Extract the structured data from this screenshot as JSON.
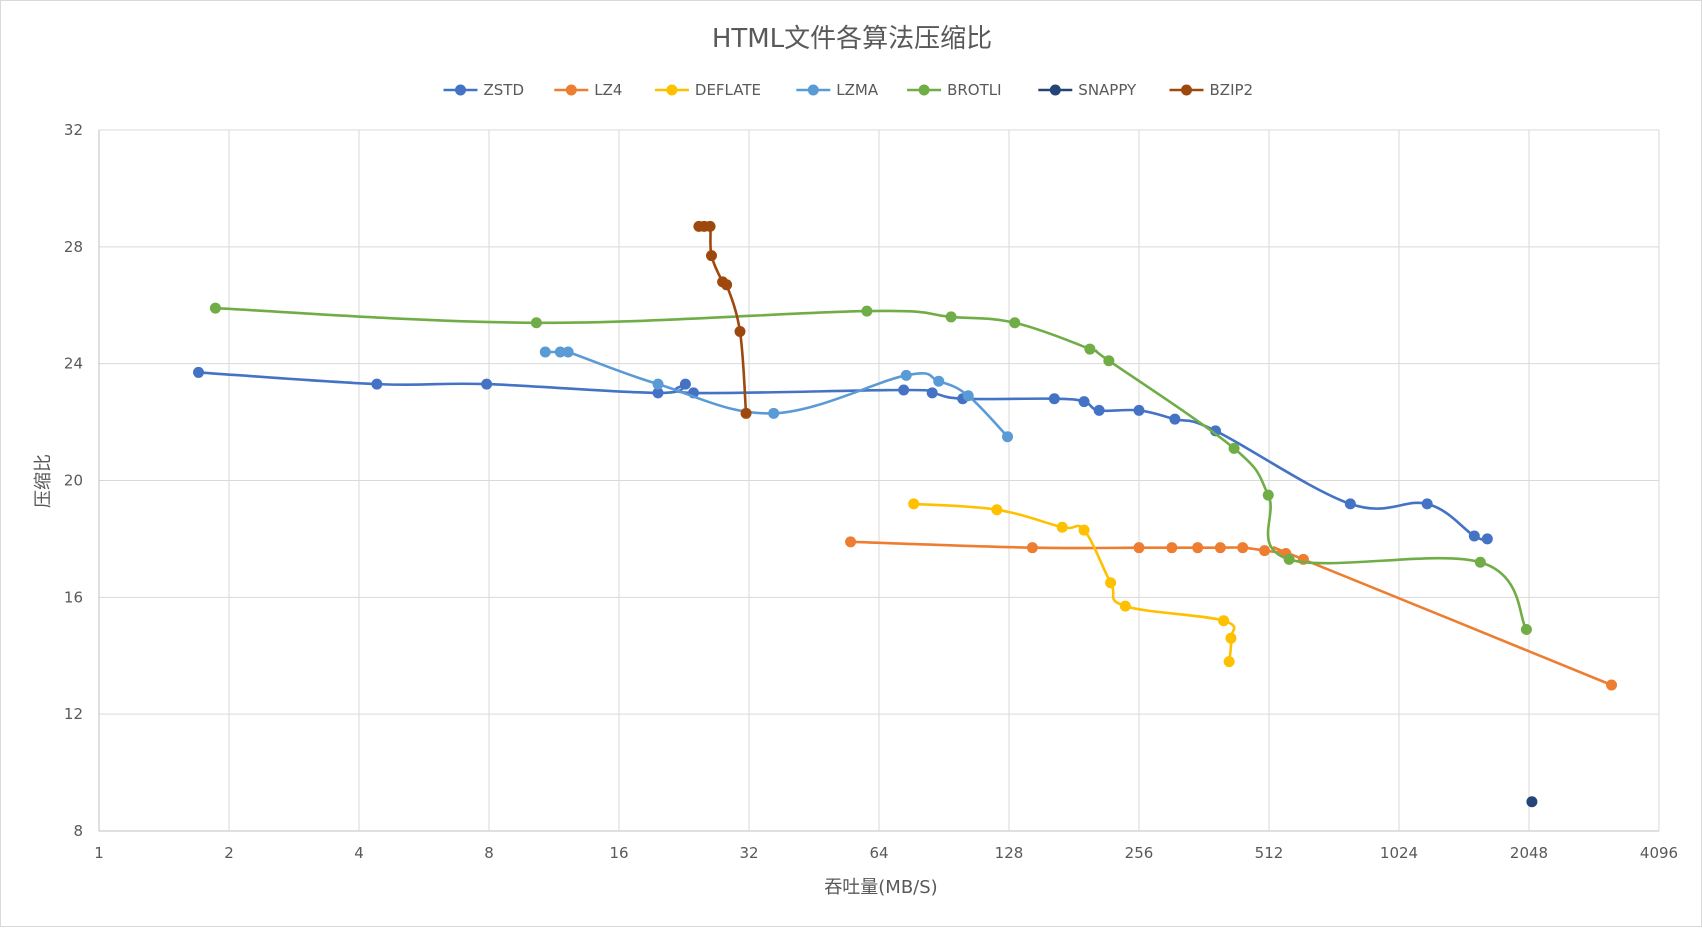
{
  "chart_data": {
    "type": "line",
    "title": "HTML文件各算法压缩比",
    "xlabel": "吞吐量(MB/S)",
    "ylabel": "压缩比",
    "xscale": "log2",
    "xlim": [
      1,
      4096
    ],
    "ylim": [
      8,
      32
    ],
    "x_ticks": [
      1,
      2,
      4,
      8,
      16,
      32,
      64,
      128,
      256,
      512,
      1024,
      2048,
      4096
    ],
    "x_tick_labels": [
      "1",
      "2",
      "4",
      "8",
      "16",
      "32",
      "64",
      "128",
      "256",
      "512",
      "1024",
      "2048",
      "4096"
    ],
    "y_ticks": [
      8,
      12,
      16,
      20,
      24,
      28,
      32
    ],
    "y_tick_labels": [
      "8",
      "12",
      "16",
      "20",
      "24",
      "28",
      "32"
    ],
    "grid": true,
    "legend_position": "top",
    "series": [
      {
        "name": "ZSTD",
        "color": "#4472C4",
        "points": [
          [
            1.7,
            23.7
          ],
          [
            4.4,
            23.3
          ],
          [
            7.9,
            23.3
          ],
          [
            19.7,
            23.0
          ],
          [
            22.8,
            23.3
          ],
          [
            23.8,
            23.0
          ],
          [
            73,
            23.1
          ],
          [
            85,
            23.0
          ],
          [
            100,
            22.8
          ],
          [
            163,
            22.8
          ],
          [
            191,
            22.7
          ],
          [
            207,
            22.4
          ],
          [
            256,
            22.4
          ],
          [
            310,
            22.1
          ],
          [
            385,
            21.7
          ],
          [
            790,
            19.2
          ],
          [
            1190,
            19.2
          ],
          [
            1530,
            18.1
          ],
          [
            1640,
            18.0
          ]
        ]
      },
      {
        "name": "LZ4",
        "color": "#ED7D31",
        "points": [
          [
            55,
            17.9
          ],
          [
            145,
            17.7
          ],
          [
            256,
            17.7
          ],
          [
            305,
            17.7
          ],
          [
            350,
            17.7
          ],
          [
            395,
            17.7
          ],
          [
            445,
            17.7
          ],
          [
            500,
            17.6
          ],
          [
            560,
            17.5
          ],
          [
            615,
            17.3
          ],
          [
            3180,
            13.0
          ]
        ]
      },
      {
        "name": "DEFLATE",
        "color": "#FFC000",
        "points": [
          [
            77,
            19.2
          ],
          [
            120,
            19.0
          ],
          [
            170,
            18.4
          ],
          [
            191,
            18.3
          ],
          [
            220,
            16.5
          ],
          [
            238,
            15.7
          ],
          [
            402,
            15.2
          ],
          [
            418,
            14.6
          ],
          [
            414,
            13.8
          ]
        ]
      },
      {
        "name": "LZMA",
        "color": "#5B9BD5",
        "points": [
          [
            10.8,
            24.4
          ],
          [
            11.7,
            24.4
          ],
          [
            12.2,
            24.4
          ],
          [
            19.7,
            23.3
          ],
          [
            36.5,
            22.3
          ],
          [
            74,
            23.6
          ],
          [
            88,
            23.4
          ],
          [
            103,
            22.9
          ],
          [
            127,
            21.5
          ]
        ]
      },
      {
        "name": "BROTLI",
        "color": "#70AD47",
        "points": [
          [
            1.86,
            25.9
          ],
          [
            10.3,
            25.4
          ],
          [
            60,
            25.8
          ],
          [
            94,
            25.6
          ],
          [
            132,
            25.4
          ],
          [
            197,
            24.5
          ],
          [
            218,
            24.1
          ],
          [
            425,
            21.1
          ],
          [
            510,
            19.5
          ],
          [
            570,
            17.3
          ],
          [
            1580,
            17.2
          ],
          [
            2020,
            14.9
          ]
        ]
      },
      {
        "name": "SNAPPY",
        "color": "#264478",
        "points": [
          [
            2080,
            9.0
          ]
        ]
      },
      {
        "name": "BZIP2",
        "color": "#9E480E",
        "points": [
          [
            24.5,
            28.7
          ],
          [
            25.2,
            28.7
          ],
          [
            26.0,
            28.7
          ],
          [
            26.2,
            27.7
          ],
          [
            27.8,
            26.8
          ],
          [
            28.4,
            26.7
          ],
          [
            30.5,
            25.1
          ],
          [
            31.5,
            22.3
          ]
        ]
      }
    ]
  }
}
